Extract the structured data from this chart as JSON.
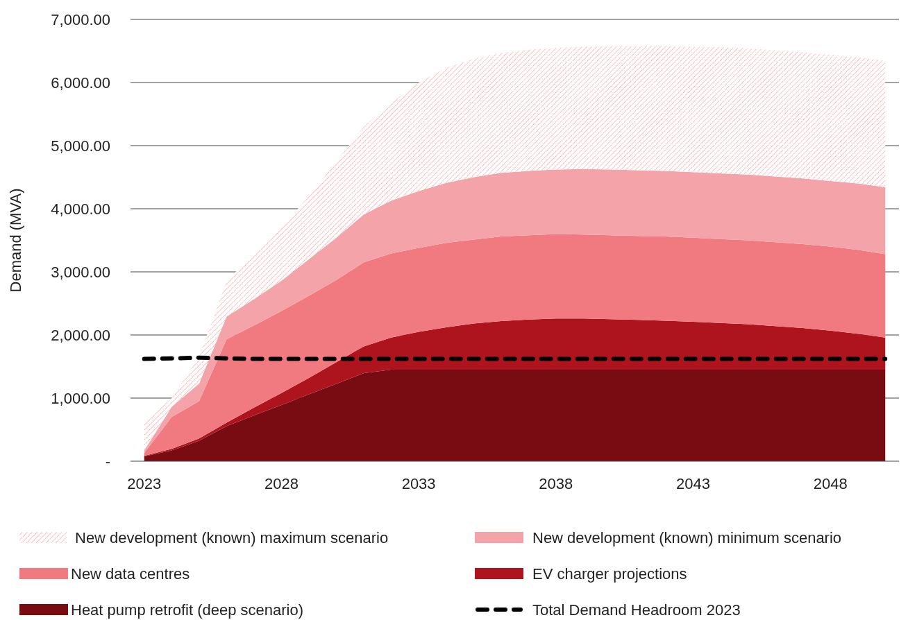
{
  "chart_data": {
    "type": "area",
    "stacked": true,
    "ylabel": "Demand (MVA)",
    "categories": [
      "2023",
      null,
      null,
      null,
      null,
      "2028",
      null,
      null,
      null,
      null,
      "2033",
      null,
      null,
      null,
      null,
      "2038",
      null,
      null,
      null,
      null,
      "2043",
      null,
      null,
      null,
      null,
      "2048",
      null,
      null
    ],
    "ylim": [
      0,
      7000
    ],
    "yticks": [
      {
        "value": 0,
        "label": "-"
      },
      {
        "value": 1000,
        "label": "1,000.00"
      },
      {
        "value": 2000,
        "label": "2,000.00"
      },
      {
        "value": 3000,
        "label": "3,000.00"
      },
      {
        "value": 4000,
        "label": "4,000.00"
      },
      {
        "value": 5000,
        "label": "5,000.00"
      },
      {
        "value": 6000,
        "label": "6,000.00"
      },
      {
        "value": 7000,
        "label": "7,000.00"
      }
    ],
    "grid": "y",
    "legend": "bottom",
    "series": [
      {
        "name": "Heat pump retrofit (deep scenario)",
        "color": "#780c12",
        "values": [
          77,
          170,
          323,
          555,
          725,
          890,
          1060,
          1225,
          1395,
          1450,
          1450,
          1450,
          1450,
          1450,
          1450,
          1450,
          1450,
          1450,
          1450,
          1450,
          1450,
          1450,
          1450,
          1450,
          1450,
          1450,
          1450,
          1450
        ]
      },
      {
        "name": "EV charger projections",
        "color": "#ad141d",
        "values": [
          8,
          25,
          37,
          55,
          125,
          190,
          260,
          345,
          425,
          510,
          600,
          670,
          730,
          770,
          795,
          810,
          810,
          800,
          790,
          775,
          760,
          740,
          720,
          690,
          660,
          620,
          570,
          510
        ]
      },
      {
        "name": "New data centres",
        "color": "#f07a80",
        "values": [
          45,
          505,
          590,
          1320,
          1300,
          1300,
          1300,
          1300,
          1330,
          1330,
          1330,
          1340,
          1330,
          1340,
          1335,
          1340,
          1330,
          1330,
          1330,
          1335,
          1330,
          1330,
          1330,
          1330,
          1330,
          1330,
          1330,
          1320
        ]
      },
      {
        "name": "New development (known) minimum scenario",
        "color": "#f4a4a9",
        "values": [
          40,
          160,
          280,
          360,
          420,
          480,
          580,
          670,
          760,
          840,
          900,
          950,
          990,
          1010,
          1020,
          1020,
          1040,
          1040,
          1040,
          1040,
          1040,
          1040,
          1040,
          1040,
          1040,
          1040,
          1050,
          1060
        ]
      },
      {
        "name": "New development (known) maximum scenario",
        "color": "#f4868f",
        "values": [
          470,
          140,
          430,
          560,
          730,
          840,
          1000,
          1210,
          1390,
          1550,
          1720,
          1820,
          1880,
          1900,
          1920,
          1930,
          1940,
          1960,
          1970,
          1980,
          1990,
          2000,
          2000,
          2000,
          2000,
          2000,
          2000,
          2000
        ]
      },
      {
        "name": "Total Demand Headroom 2023",
        "type": "line",
        "line_style": "dashed",
        "color": "#000000",
        "values": [
          1620,
          1630,
          1640,
          1630,
          1620,
          1620,
          1620,
          1620,
          1620,
          1620,
          1620,
          1620,
          1620,
          1620,
          1620,
          1620,
          1620,
          1620,
          1620,
          1620,
          1620,
          1620,
          1620,
          1620,
          1620,
          1620,
          1620,
          1620
        ]
      }
    ]
  }
}
